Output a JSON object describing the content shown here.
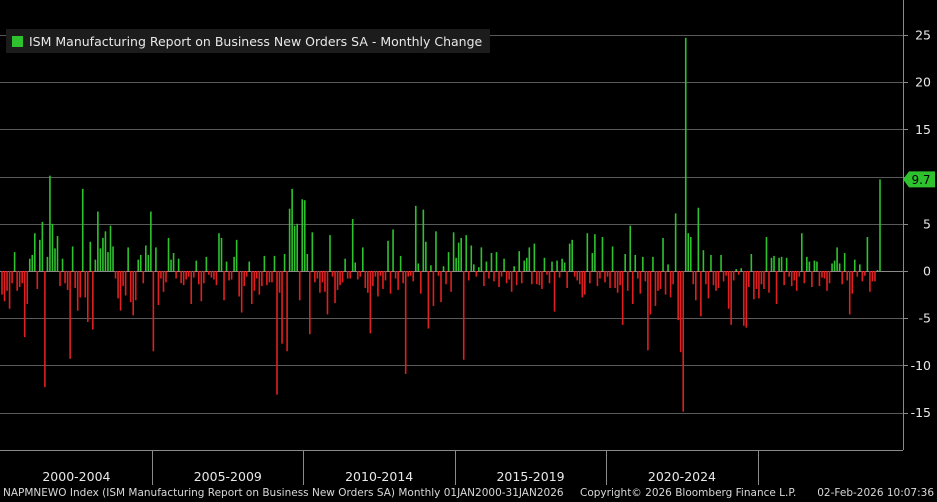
{
  "chart_data": {
    "type": "bar",
    "title": "ISM Manufacturing Report on Business New Orders SA - Monthly Change",
    "ylim": [
      -19,
      28
    ],
    "y_ticks": [
      25,
      20,
      15,
      10,
      5,
      0,
      -5,
      -10,
      -15
    ],
    "y_tick_labels": [
      "25",
      "20",
      "15",
      "10",
      "5",
      "0",
      "-5",
      "-10",
      "-15"
    ],
    "x_tick_labels": [
      "2000-2004",
      "2005-2009",
      "2010-2014",
      "2015-2019",
      "2020-2024"
    ],
    "last_value_label": "9.7",
    "last_value": 9.7,
    "positive_color": "#2ec32e",
    "negative_color": "#e02020",
    "series": [
      {
        "name": "ISM Manufacturing Report on Business New Orders SA - Monthly Change",
        "start": "2000-01",
        "values": [
          -2.5,
          -3.2,
          -2.1,
          -4.0,
          -1.3,
          2.0,
          -2.1,
          -1.7,
          -1.3,
          -7.0,
          -3.5,
          1.3,
          1.7,
          4.0,
          -1.9,
          3.3,
          5.2,
          -12.3,
          1.5,
          10.1,
          5.0,
          2.4,
          3.7,
          -1.6,
          1.3,
          -1.3,
          -2.0,
          -9.3,
          2.6,
          -1.8,
          -4.2,
          -2.8,
          8.7,
          -2.8,
          -5.4,
          3.1,
          -6.2,
          1.2,
          6.3,
          2.4,
          3.5,
          4.2,
          2.0,
          4.8,
          2.6,
          -0.8,
          -2.9,
          -4.2,
          -1.6,
          -2.6,
          2.5,
          -3.3,
          -4.7,
          -3.1,
          1.2,
          1.7,
          -1.3,
          2.7,
          1.7,
          6.3,
          -8.5,
          2.5,
          -3.6,
          -0.8,
          -2.2,
          -1.2,
          3.5,
          1.2,
          1.9,
          -0.8,
          1.3,
          -1.3,
          -1.5,
          -0.9,
          -0.6,
          -3.5,
          -0.7,
          1.1,
          -1.4,
          -3.2,
          -1.3,
          1.5,
          -0.4,
          -0.7,
          -0.9,
          -1.5,
          4.0,
          3.5,
          -3.1,
          1.0,
          -1.0,
          -0.9,
          1.5,
          3.3,
          -2.7,
          -4.4,
          -1.6,
          -0.6,
          1.0,
          -3.5,
          -2.1,
          -0.8,
          -2.5,
          -1.6,
          1.6,
          -1.5,
          -1.2,
          -1.2,
          1.6,
          -13.1,
          -2.3,
          -7.7,
          1.8,
          -8.5,
          6.6,
          8.7,
          4.8,
          5.0,
          -3.1,
          7.6,
          7.5,
          1.8,
          -6.7,
          4.1,
          -1.2,
          -0.8,
          -2.3,
          -1.2,
          -2.2,
          -4.6,
          3.8,
          -0.6,
          -3.4,
          -2.0,
          -1.5,
          -1.2,
          1.3,
          -0.8,
          -0.8,
          5.5,
          0.9,
          -0.9,
          -0.6,
          2.5,
          -1.8,
          -2.3,
          -6.6,
          -1.6,
          -0.6,
          -2.7,
          -0.5,
          -1.9,
          -1.0,
          3.2,
          -2.4,
          4.4,
          -0.8,
          -2.0,
          1.6,
          -1.3,
          -10.9,
          -0.6,
          -0.5,
          -1.1,
          6.9,
          0.8,
          -2.4,
          6.5,
          3.1,
          -6.1,
          0.6,
          -3.7,
          4.2,
          -0.5,
          -3.3,
          0.5,
          -1.4,
          2.0,
          -2.2,
          4.1,
          1.4,
          3.0,
          3.5,
          -9.4,
          3.8,
          -1.0,
          2.7,
          0.7,
          -0.6,
          0.4,
          2.5,
          -1.6,
          1.0,
          -0.8,
          1.9,
          -1.1,
          2.0,
          -1.7,
          -0.6,
          1.3,
          -1.3,
          -0.9,
          -2.2,
          0.5,
          -1.5,
          2.1,
          -1.3,
          1.1,
          1.4,
          2.5,
          -1.4,
          2.9,
          -1.4,
          -1.5,
          -1.9,
          1.4,
          -0.4,
          -1.3,
          1.0,
          -4.3,
          1.1,
          -0.7,
          1.3,
          0.9,
          -1.8,
          2.9,
          3.3,
          -0.6,
          -1.0,
          -1.4,
          -2.8,
          -2.5,
          4.0,
          -1.3,
          1.9,
          3.9,
          -1.6,
          -0.8,
          3.6,
          -1.2,
          -0.6,
          -1.8,
          2.6,
          -1.8,
          -2.3,
          -1.5,
          -5.7,
          1.8,
          -2.1,
          4.8,
          -3.5,
          1.7,
          -0.8,
          -2.4,
          1.5,
          -1.1,
          -8.4,
          -4.6,
          1.5,
          -3.7,
          -2.1,
          -1.9,
          3.5,
          -2.5,
          0.7,
          -2.8,
          -1.4,
          6.1,
          -5.2,
          -8.6,
          -14.9,
          24.7,
          4.0,
          3.6,
          -1.4,
          -3.1,
          6.7,
          -4.8,
          2.2,
          -1.4,
          -2.9,
          1.7,
          -1.5,
          -2.1,
          -1.8,
          1.7,
          -1.1,
          -0.5,
          -4.0,
          -5.7,
          -1.0,
          0.2,
          -0.4,
          0.3,
          -5.8,
          -6.0,
          -1.7,
          1.8,
          -3.0,
          -1.9,
          -2.9,
          -1.4,
          -1.9,
          3.6,
          -2.3,
          1.4,
          1.6,
          -3.5,
          1.4,
          1.5,
          -1.5,
          1.4,
          -0.6,
          -1.6,
          -1.0,
          -2.1,
          -0.6,
          4.0,
          -1.3,
          1.5,
          1.0,
          -1.7,
          1.1,
          1.0,
          -1.6,
          -0.7,
          -0.8,
          -2.1,
          -1.3,
          0.8,
          1.1,
          2.5,
          0.8,
          -1.4,
          1.9,
          -1.0,
          -4.6,
          -2.4,
          1.2,
          -0.6,
          0.7,
          -1.1,
          -0.5,
          3.6,
          -2.2,
          -1.1,
          -1.1,
          0.1,
          9.7
        ]
      }
    ]
  }
}
